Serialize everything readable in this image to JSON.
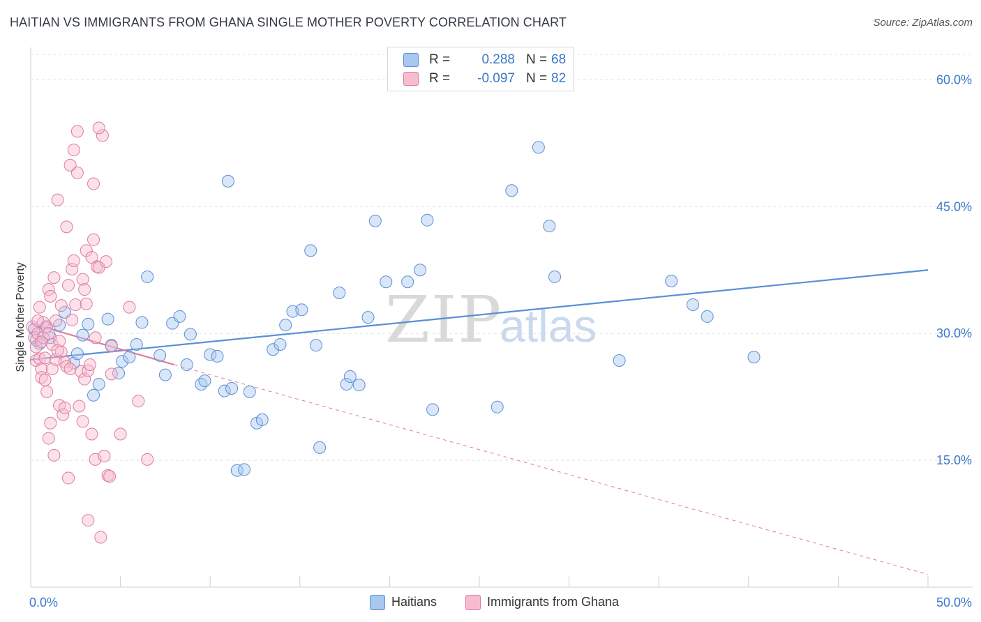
{
  "title": "HAITIAN VS IMMIGRANTS FROM GHANA SINGLE MOTHER POVERTY CORRELATION CHART",
  "source": "Source: ZipAtlas.com",
  "watermark": {
    "zip": "ZIP",
    "atlas": "atlas"
  },
  "legend_top": [
    {
      "r_label": "R =",
      "r_value": "0.288",
      "n_label": "N =",
      "n_value": "68",
      "color": "#a9c8ef",
      "stroke": "#5a8fd6"
    },
    {
      "r_label": "R =",
      "r_value": "-0.097",
      "n_label": "N =",
      "n_value": "82",
      "color": "#f7bcd0",
      "stroke": "#e07aa0"
    }
  ],
  "legend_bottom": [
    {
      "label": "Haitians",
      "color": "#a9c8ef",
      "stroke": "#5a8fd6"
    },
    {
      "label": "Immigrants from Ghana",
      "color": "#f7bcd0",
      "stroke": "#e07aa0"
    }
  ],
  "chart_data": {
    "type": "scatter",
    "title": "HAITIAN VS IMMIGRANTS FROM GHANA SINGLE MOTHER POVERTY CORRELATION CHART",
    "xlabel": "",
    "ylabel": "Single Mother Poverty",
    "xlim": [
      0,
      50
    ],
    "ylim": [
      0,
      63
    ],
    "x_tick_labels": [
      {
        "value": 0,
        "label": "0.0%"
      },
      {
        "value": 50,
        "label": "50.0%"
      }
    ],
    "y_tick_labels": [
      {
        "value": 15,
        "label": "15.0%"
      },
      {
        "value": 30,
        "label": "30.0%"
      },
      {
        "value": 45,
        "label": "45.0%"
      },
      {
        "value": 60,
        "label": "60.0%"
      }
    ],
    "grid": true,
    "series": [
      {
        "name": "Haitians",
        "color": "#5a8fd6",
        "fill": "rgba(169,200,239,0.45)",
        "trend": {
          "x": [
            0,
            50
          ],
          "y": [
            26.9,
            37.5
          ],
          "dashed_x": null
        },
        "points": [
          [
            0.2,
            30.5
          ],
          [
            0.5,
            28.8
          ],
          [
            0.8,
            30.7
          ],
          [
            1.1,
            29.5
          ],
          [
            1.9,
            32.5
          ],
          [
            2.4,
            26.5
          ],
          [
            2.6,
            27.6
          ],
          [
            2.9,
            29.8
          ],
          [
            3.2,
            31.1
          ],
          [
            3.5,
            22.7
          ],
          [
            3.8,
            24.0
          ],
          [
            4.3,
            31.7
          ],
          [
            4.5,
            28.6
          ],
          [
            4.9,
            25.3
          ],
          [
            5.1,
            26.7
          ],
          [
            5.5,
            27.2
          ],
          [
            5.9,
            28.7
          ],
          [
            6.2,
            31.3
          ],
          [
            6.5,
            36.7
          ],
          [
            7.2,
            27.4
          ],
          [
            7.5,
            25.1
          ],
          [
            7.9,
            31.2
          ],
          [
            8.3,
            32.0
          ],
          [
            8.7,
            26.3
          ],
          [
            8.9,
            29.9
          ],
          [
            9.5,
            24.0
          ],
          [
            9.7,
            24.4
          ],
          [
            10.0,
            27.5
          ],
          [
            10.4,
            27.3
          ],
          [
            10.8,
            23.2
          ],
          [
            11.0,
            48.0
          ],
          [
            11.2,
            23.5
          ],
          [
            11.5,
            13.8
          ],
          [
            11.9,
            13.9
          ],
          [
            12.2,
            23.1
          ],
          [
            12.6,
            19.4
          ],
          [
            12.9,
            19.8
          ],
          [
            13.5,
            28.1
          ],
          [
            13.9,
            28.7
          ],
          [
            14.2,
            31.0
          ],
          [
            14.6,
            32.6
          ],
          [
            15.1,
            32.8
          ],
          [
            15.6,
            39.8
          ],
          [
            15.9,
            28.6
          ],
          [
            16.1,
            16.5
          ],
          [
            17.2,
            34.8
          ],
          [
            17.6,
            24.0
          ],
          [
            17.8,
            24.9
          ],
          [
            18.3,
            23.9
          ],
          [
            18.8,
            31.9
          ],
          [
            19.2,
            43.3
          ],
          [
            19.8,
            36.1
          ],
          [
            21.0,
            36.1
          ],
          [
            21.7,
            37.5
          ],
          [
            22.1,
            43.4
          ],
          [
            22.4,
            21.0
          ],
          [
            26.0,
            21.3
          ],
          [
            26.8,
            46.9
          ],
          [
            28.3,
            52.0
          ],
          [
            28.9,
            42.7
          ],
          [
            29.2,
            36.7
          ],
          [
            32.8,
            26.8
          ],
          [
            35.7,
            36.2
          ],
          [
            36.9,
            33.4
          ],
          [
            37.7,
            32.0
          ],
          [
            40.3,
            27.2
          ],
          [
            1.6,
            31.0
          ],
          [
            0.3,
            29.2
          ]
        ]
      },
      {
        "name": "Immigrants from Ghana",
        "color": "#e07aa0",
        "fill": "rgba(247,188,208,0.45)",
        "trend": {
          "x": [
            0,
            8
          ],
          "y": [
            31.2,
            26.3
          ],
          "dashed_x": [
            8,
            50
          ],
          "dashed_y": [
            26.3,
            1.5
          ]
        },
        "points": [
          [
            0.1,
            30.8
          ],
          [
            0.2,
            29.5
          ],
          [
            0.3,
            28.4
          ],
          [
            0.3,
            26.8
          ],
          [
            0.4,
            30.0
          ],
          [
            0.5,
            33.1
          ],
          [
            0.5,
            27.0
          ],
          [
            0.6,
            25.8
          ],
          [
            0.6,
            24.8
          ],
          [
            0.7,
            31.3
          ],
          [
            0.7,
            29.5
          ],
          [
            0.8,
            27.1
          ],
          [
            0.8,
            24.5
          ],
          [
            0.9,
            23.1
          ],
          [
            0.9,
            30.8
          ],
          [
            1.0,
            17.6
          ],
          [
            1.0,
            35.2
          ],
          [
            1.1,
            34.4
          ],
          [
            1.1,
            19.4
          ],
          [
            1.2,
            25.8
          ],
          [
            1.2,
            28.7
          ],
          [
            1.3,
            36.6
          ],
          [
            1.3,
            15.6
          ],
          [
            1.4,
            26.9
          ],
          [
            1.4,
            31.5
          ],
          [
            1.5,
            45.8
          ],
          [
            1.6,
            21.5
          ],
          [
            1.6,
            29.1
          ],
          [
            1.7,
            33.3
          ],
          [
            1.7,
            27.8
          ],
          [
            1.8,
            20.4
          ],
          [
            1.9,
            26.6
          ],
          [
            1.9,
            21.2
          ],
          [
            2.0,
            42.6
          ],
          [
            2.0,
            26.1
          ],
          [
            2.1,
            35.7
          ],
          [
            2.1,
            12.9
          ],
          [
            2.2,
            25.8
          ],
          [
            2.3,
            31.6
          ],
          [
            2.3,
            37.6
          ],
          [
            2.4,
            38.6
          ],
          [
            2.4,
            51.7
          ],
          [
            2.5,
            33.4
          ],
          [
            2.6,
            49.0
          ],
          [
            2.7,
            21.4
          ],
          [
            2.8,
            25.5
          ],
          [
            2.9,
            19.6
          ],
          [
            2.9,
            36.4
          ],
          [
            3.0,
            35.2
          ],
          [
            3.0,
            24.6
          ],
          [
            3.1,
            39.8
          ],
          [
            3.1,
            33.5
          ],
          [
            3.2,
            25.6
          ],
          [
            3.3,
            26.3
          ],
          [
            3.4,
            18.1
          ],
          [
            3.4,
            39.0
          ],
          [
            3.5,
            47.7
          ],
          [
            3.5,
            41.1
          ],
          [
            3.6,
            29.5
          ],
          [
            3.6,
            15.1
          ],
          [
            3.7,
            37.9
          ],
          [
            3.8,
            37.8
          ],
          [
            3.9,
            5.9
          ],
          [
            4.0,
            53.4
          ],
          [
            4.1,
            15.5
          ],
          [
            4.2,
            38.5
          ],
          [
            4.3,
            13.2
          ],
          [
            4.4,
            13.1
          ],
          [
            4.5,
            25.2
          ],
          [
            4.5,
            28.5
          ],
          [
            5.0,
            18.1
          ],
          [
            5.5,
            33.1
          ],
          [
            6.0,
            22.0
          ],
          [
            6.5,
            15.1
          ],
          [
            2.6,
            53.9
          ],
          [
            3.8,
            54.3
          ],
          [
            2.2,
            49.9
          ],
          [
            3.2,
            7.9
          ],
          [
            0.6,
            29.0
          ],
          [
            1.0,
            30.0
          ],
          [
            1.5,
            28.0
          ],
          [
            0.4,
            31.5
          ]
        ]
      }
    ]
  }
}
